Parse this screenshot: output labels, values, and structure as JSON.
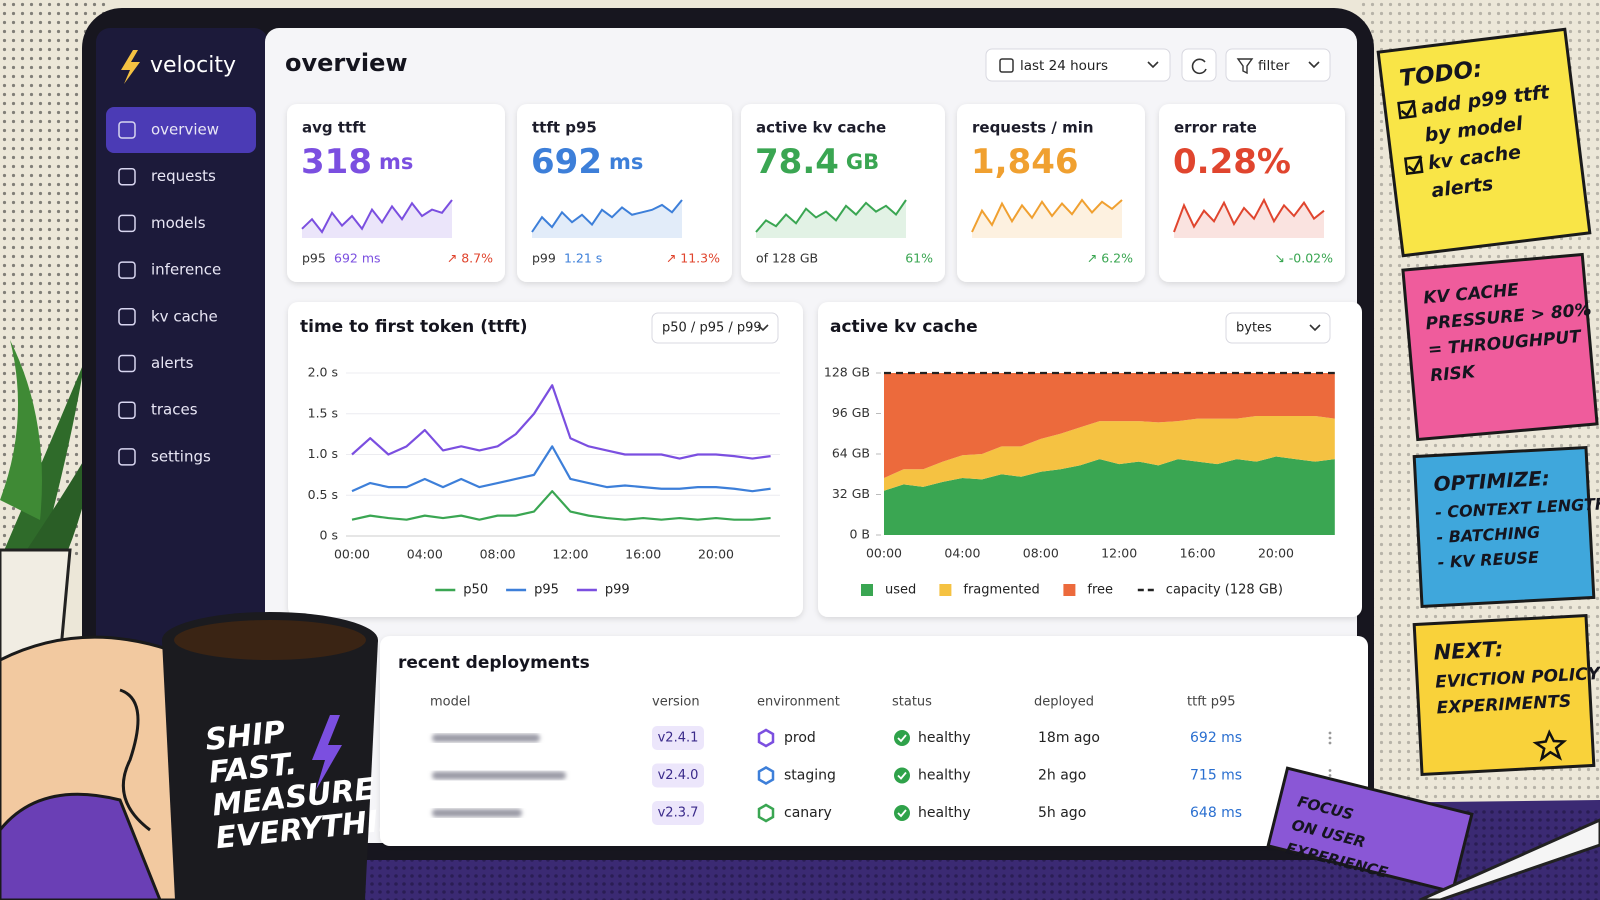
{
  "sidebar": {
    "brand": "velocity",
    "active": 0,
    "nav": [
      "overview",
      "requests",
      "models",
      "inference",
      "kv cache",
      "alerts",
      "traces",
      "settings"
    ]
  },
  "header": {
    "title": "overview",
    "time_range": "last 24 hours",
    "filter": "filter"
  },
  "kpis": [
    {
      "label": "avg ttft",
      "value": "318",
      "unit": "ms",
      "sub_label": "p95",
      "sub_value": "692 ms",
      "change": "↗ 8.7%",
      "color": "#7b4fe0",
      "change_color": "#e0452e",
      "sparkline": [
        305,
        320,
        300,
        330,
        310,
        325,
        305,
        335,
        315,
        340,
        320,
        345,
        325,
        335,
        330,
        350
      ]
    },
    {
      "label": "ttft p95",
      "value": "692",
      "unit": "ms",
      "sub_label": "p99",
      "sub_value": "1.21 s",
      "change": "↗ 11.3%",
      "color": "#3d7fd9",
      "change_color": "#e0452e",
      "sparkline": [
        660,
        690,
        670,
        700,
        680,
        695,
        675,
        705,
        690,
        710,
        695,
        700,
        705,
        715,
        700,
        725
      ]
    },
    {
      "label": "active kv cache",
      "value": "78.4",
      "unit": "GB",
      "sub_label": "of 128 GB",
      "change": "61%",
      "color": "#3aa652",
      "change_color": "#3aa652",
      "sparkline": [
        70,
        74,
        72,
        76,
        73,
        78,
        75,
        77,
        74,
        79,
        76,
        80,
        77,
        79,
        76,
        81
      ]
    },
    {
      "label": "requests / min",
      "value": "1,846",
      "change": "↗ 6.2%",
      "color": "#f0a030",
      "change_color": "#3aa652",
      "sparkline": [
        1700,
        1820,
        1740,
        1860,
        1760,
        1850,
        1780,
        1870,
        1790,
        1860,
        1800,
        1880,
        1810,
        1870,
        1830,
        1880
      ]
    },
    {
      "label": "error rate",
      "value": "0.28%",
      "change": "↘ -0.02%",
      "color": "#e0452e",
      "change_color": "#3aa652",
      "sparkline": [
        0.22,
        0.32,
        0.24,
        0.3,
        0.26,
        0.33,
        0.25,
        0.31,
        0.27,
        0.34,
        0.26,
        0.32,
        0.28,
        0.33,
        0.27,
        0.3
      ]
    }
  ],
  "chart_data": [
    {
      "type": "line",
      "title": "time to first token (ttft)",
      "selector": "p50 / p95 / p99",
      "categories": [
        "00:00",
        null,
        null,
        null,
        "04:00",
        null,
        null,
        null,
        "08:00",
        null,
        null,
        null,
        "12:00",
        null,
        null,
        null,
        "16:00",
        null,
        null,
        null,
        "20:00",
        null,
        null,
        null
      ],
      "ylim": [
        0,
        2
      ],
      "yticks": [
        {
          "value": 0,
          "label": "0 s"
        },
        {
          "value": 0.5,
          "label": "0.5 s"
        },
        {
          "value": 1,
          "label": "1.0 s"
        },
        {
          "value": 1.5,
          "label": "1.5 s"
        },
        {
          "value": 2,
          "label": "2.0 s"
        }
      ],
      "grid": true,
      "series": [
        {
          "name": "p50",
          "color": "#3aa652",
          "values": [
            0.2,
            0.25,
            0.22,
            0.2,
            0.25,
            0.22,
            0.25,
            0.2,
            0.25,
            0.25,
            0.3,
            0.55,
            0.3,
            0.25,
            0.22,
            0.2,
            0.22,
            0.2,
            0.22,
            0.2,
            0.22,
            0.2,
            0.2,
            0.22
          ]
        },
        {
          "name": "p95",
          "color": "#3d7fd9",
          "values": [
            0.55,
            0.65,
            0.6,
            0.6,
            0.7,
            0.6,
            0.7,
            0.6,
            0.65,
            0.7,
            0.75,
            1.1,
            0.7,
            0.65,
            0.6,
            0.62,
            0.6,
            0.58,
            0.58,
            0.6,
            0.6,
            0.58,
            0.55,
            0.58
          ]
        },
        {
          "name": "p99",
          "color": "#7b4fe0",
          "values": [
            1.0,
            1.2,
            1.0,
            1.1,
            1.3,
            1.05,
            1.1,
            1.05,
            1.1,
            1.25,
            1.5,
            1.85,
            1.2,
            1.1,
            1.05,
            1.0,
            1.0,
            1.0,
            0.95,
            1.0,
            1.0,
            0.98,
            0.95,
            0.98
          ]
        }
      ]
    },
    {
      "type": "area",
      "stacked": true,
      "title": "active kv cache",
      "selector": "bytes",
      "categories": [
        "00:00",
        null,
        null,
        null,
        "04:00",
        null,
        null,
        null,
        "08:00",
        null,
        null,
        null,
        "12:00",
        null,
        null,
        null,
        "16:00",
        null,
        null,
        null,
        "20:00",
        null,
        null,
        null
      ],
      "ylim": [
        0,
        128
      ],
      "yticks": [
        {
          "value": 0,
          "label": "0 B"
        },
        {
          "value": 32,
          "label": "32 GB"
        },
        {
          "value": 64,
          "label": "64 GB"
        },
        {
          "value": 96,
          "label": "96 GB"
        },
        {
          "value": 128,
          "label": "128 GB"
        }
      ],
      "series": [
        {
          "name": "used",
          "color": "#3aa652",
          "values": [
            35,
            40,
            38,
            42,
            45,
            44,
            48,
            46,
            50,
            52,
            55,
            60,
            56,
            58,
            55,
            60,
            58,
            56,
            60,
            58,
            62,
            60,
            58,
            60
          ]
        },
        {
          "name": "fragmented",
          "color": "#f5c242",
          "values": [
            10,
            12,
            14,
            16,
            18,
            20,
            22,
            24,
            26,
            28,
            30,
            30,
            34,
            32,
            34,
            30,
            34,
            36,
            32,
            36,
            32,
            34,
            36,
            32
          ]
        },
        {
          "name": "free",
          "color": "#ec6a3c",
          "values": [
            83,
            76,
            76,
            70,
            65,
            64,
            58,
            58,
            52,
            48,
            43,
            38,
            38,
            38,
            39,
            38,
            36,
            36,
            36,
            34,
            34,
            34,
            34,
            36
          ]
        }
      ],
      "capacity": {
        "name": "capacity (128 GB)",
        "value": 128
      }
    }
  ],
  "deployments": {
    "title": "recent deployments",
    "columns": [
      "model",
      "version",
      "environment",
      "status",
      "deployed",
      "ttft p95"
    ],
    "rows": [
      {
        "version": "v2.4.1",
        "environment": "prod",
        "status": "healthy",
        "deployed": "18m ago",
        "ttft": "692 ms"
      },
      {
        "version": "v2.4.0",
        "environment": "staging",
        "status": "healthy",
        "deployed": "2h ago",
        "ttft": "715 ms"
      },
      {
        "version": "v2.3.7",
        "environment": "canary",
        "status": "healthy",
        "deployed": "5h ago",
        "ttft": "648 ms"
      }
    ]
  },
  "notes": [
    {
      "title": "TODO:",
      "lines": [
        "add p99 ttft",
        "by model",
        "kv cache",
        "alerts"
      ]
    },
    {
      "lines": [
        "KV CACHE",
        "PRESSURE > 80%",
        "= THROUGHPUT",
        "RISK"
      ]
    },
    {
      "title": "OPTIMIZE:",
      "lines": [
        "- CONTEXT LENGTH",
        "- BATCHING",
        "- KV REUSE"
      ]
    },
    {
      "title": "NEXT:",
      "lines": [
        "EVICTION POLICY",
        "EXPERIMENTS"
      ]
    },
    {
      "lines": [
        "FOCUS",
        "ON USER",
        "EXPERIENCE"
      ]
    }
  ],
  "mug": {
    "lines": [
      "SHIP",
      "FAST.",
      "MEASURE",
      "EVERYTHING."
    ]
  }
}
